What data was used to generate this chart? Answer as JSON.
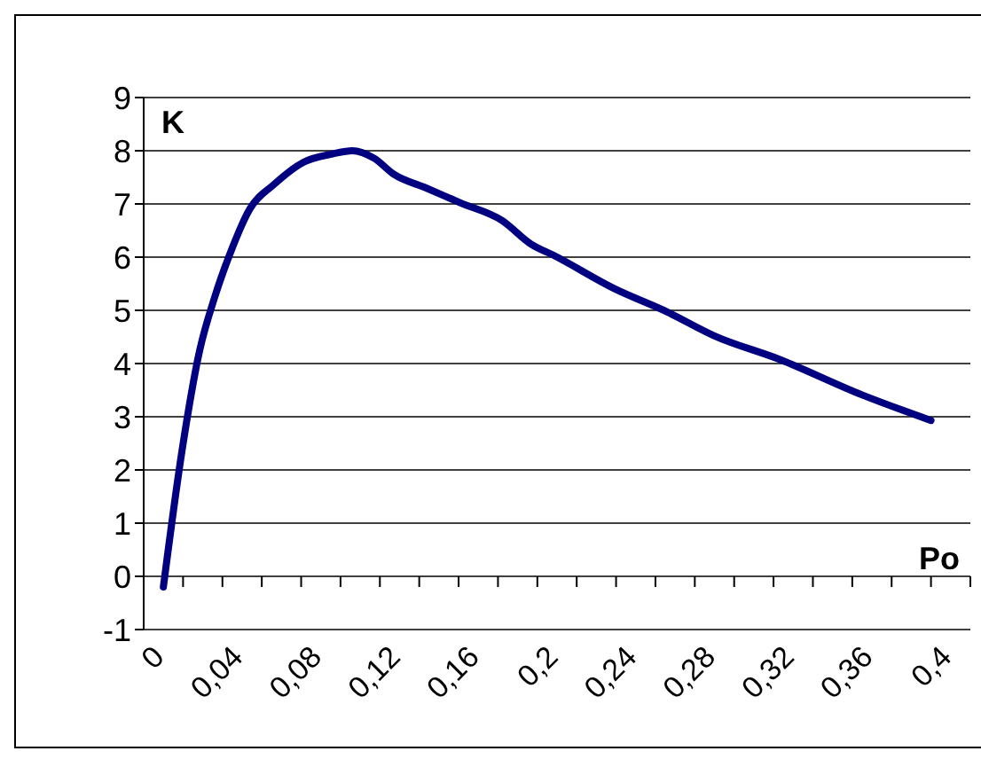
{
  "chart_data": {
    "type": "line",
    "xlabel": "Po",
    "ylabel": "K",
    "x": [
      0.01,
      0.0195,
      0.0284,
      0.036,
      0.0434,
      0.054,
      0.066,
      0.081,
      0.096,
      0.106,
      0.117,
      0.127,
      0.1435,
      0.161,
      0.182,
      0.197,
      0.209,
      0.239,
      0.266,
      0.29,
      0.323,
      0.365,
      0.4
    ],
    "series": [
      {
        "color": "#000080",
        "values": [
          -0.2,
          2.37,
          4.24,
          5.24,
          6.02,
          6.91,
          7.36,
          7.78,
          7.94,
          8.0,
          7.86,
          7.56,
          7.3,
          7.02,
          6.69,
          6.24,
          6.02,
          5.41,
          4.97,
          4.52,
          4.08,
          3.41,
          2.93
        ]
      }
    ],
    "xlim": [
      0,
      0.42
    ],
    "xticks": [
      0,
      {
        "value": 0.02,
        "label": null
      },
      {
        "value": 0.04,
        "label": "0,04"
      },
      {
        "value": 0.06,
        "label": null
      },
      {
        "value": 0.08,
        "label": "0,08"
      },
      {
        "value": 0.1,
        "label": null
      },
      {
        "value": 0.12,
        "label": "0,12"
      },
      {
        "value": 0.14,
        "label": null
      },
      {
        "value": 0.16,
        "label": "0,16"
      },
      {
        "value": 0.18,
        "label": null
      },
      {
        "value": 0.2,
        "label": "0,2"
      },
      {
        "value": 0.22,
        "label": null
      },
      {
        "value": 0.24,
        "label": "0,24"
      },
      {
        "value": 0.26,
        "label": null
      },
      {
        "value": 0.28,
        "label": "0,28"
      },
      {
        "value": 0.3,
        "label": null
      },
      {
        "value": 0.32,
        "label": "0,32"
      },
      {
        "value": 0.34,
        "label": null
      },
      {
        "value": 0.36,
        "label": "0,36"
      },
      {
        "value": 0.38,
        "label": null
      },
      {
        "value": 0.4,
        "label": "0,4"
      },
      {
        "value": 0.42,
        "label": null
      }
    ],
    "ylim": [
      -1,
      9
    ],
    "yticks": [
      -1,
      0,
      1,
      2,
      3,
      4,
      5,
      6,
      7,
      8,
      9
    ],
    "grid": "y",
    "marker": "none",
    "line_style": "solid",
    "legend": false
  }
}
